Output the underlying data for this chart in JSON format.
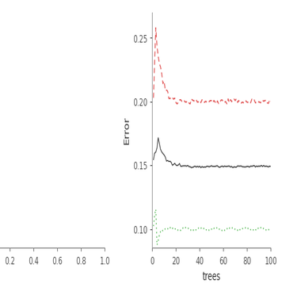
{
  "title": "",
  "xlabel": "trees",
  "ylabel": "Error",
  "xlim": [
    1,
    100
  ],
  "ylim": [
    0.085,
    0.27
  ],
  "yticks": [
    0.1,
    0.15,
    0.2,
    0.25
  ],
  "xticks": [
    0,
    20,
    40,
    60,
    80,
    100
  ],
  "n_trees": 100,
  "black_color": "#333333",
  "red_color": "#e05050",
  "green_color": "#40b040",
  "bg_color": "#ffffff",
  "spine_color": "#888888",
  "figsize": [
    3.56,
    3.67
  ],
  "dpi": 100
}
